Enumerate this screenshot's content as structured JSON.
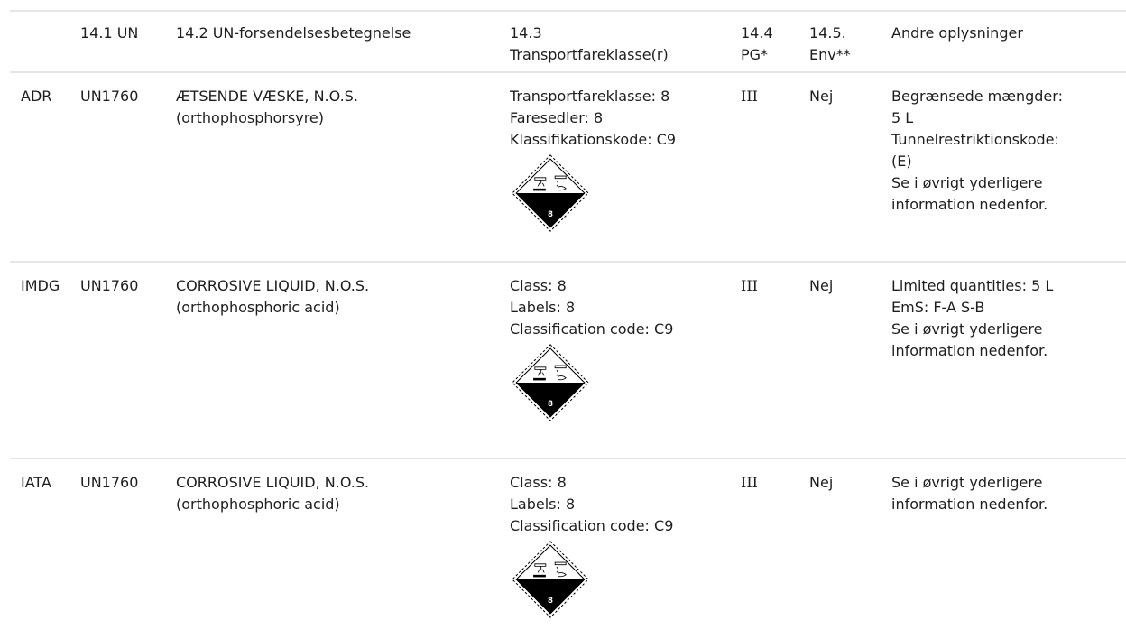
{
  "header": {
    "mode": "",
    "un": "14.1 UN",
    "name": "14.2 UN-forsendelsesbetegnelse",
    "class_line1": "14.3",
    "class_line2": "Transportfareklasse(r)",
    "pg_line1": "14.4",
    "pg_line2": "PG*",
    "env_line1": "14.5.",
    "env_line2": "Env**",
    "other": "Andre oplysninger"
  },
  "rows": [
    {
      "mode": "ADR",
      "un": "UN1760",
      "name_line1": "ÆTSENDE VÆSKE, N.O.S.",
      "name_line2": "(orthophosphorsyre)",
      "class_lines": [
        "Transportfareklasse: 8",
        "Faresedler: 8",
        "Klassifikationskode: C9"
      ],
      "label_number": "8",
      "pg": "III",
      "env": "Nej",
      "other_lines": [
        "Begrænsede mængder:",
        "5 L",
        "Tunnelrestriktionskode:",
        "(E)",
        "Se i øvrigt yderligere",
        "information nedenfor."
      ]
    },
    {
      "mode": "IMDG",
      "un": "UN1760",
      "name_line1": "CORROSIVE LIQUID, N.O.S.",
      "name_line2": "(orthophosphoric acid)",
      "class_lines": [
        "Class: 8",
        "Labels: 8",
        "Classification code: C9"
      ],
      "label_number": "8",
      "pg": "III",
      "env": "Nej",
      "other_lines": [
        "Limited quantities: 5 L",
        "EmS: F-A S-B",
        "Se i øvrigt yderligere",
        "information nedenfor."
      ]
    },
    {
      "mode": "IATA",
      "un": "UN1760",
      "name_line1": "CORROSIVE LIQUID, N.O.S.",
      "name_line2": "(orthophosphoric acid)",
      "class_lines": [
        "Class: 8",
        "Labels: 8",
        "Classification code: C9"
      ],
      "label_number": "8",
      "pg": "III",
      "env": "Nej",
      "other_lines": [
        "Se i øvrigt yderligere",
        "information nedenfor."
      ]
    }
  ],
  "icons": {
    "hazard_label": "corrosive-class-8-diamond-icon"
  },
  "colors": {
    "text": "#1e1e1e",
    "rule": "#e6e6e6",
    "label_black": "#000000"
  }
}
